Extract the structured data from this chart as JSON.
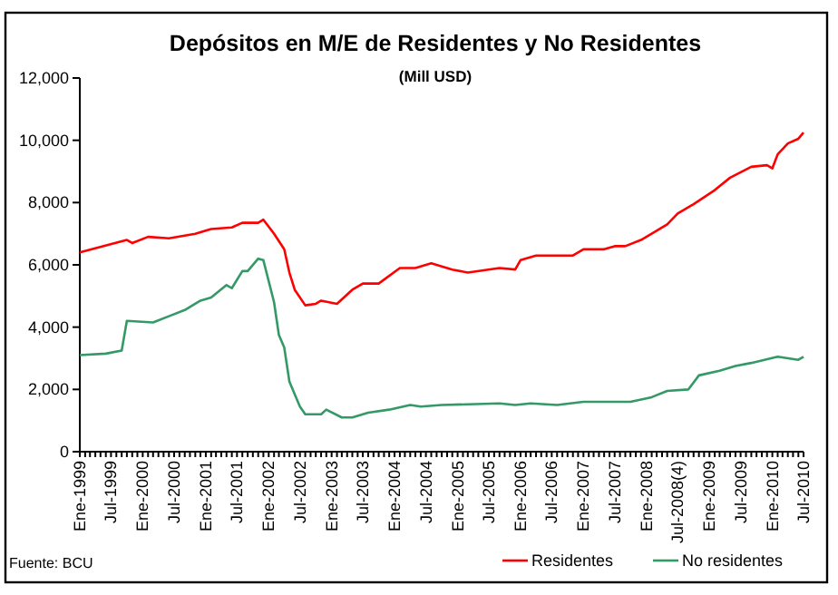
{
  "chart_data": {
    "type": "line",
    "title": "Depósitos en M/E de Residentes y No Residentes",
    "subtitle": "(Mill USD)",
    "annotations": [
      "Fuente: BCU"
    ],
    "legend": "bottom right",
    "grid": false,
    "marker": "none",
    "line_style": "solid",
    "xlim": [
      "1999-01",
      "2010-07"
    ],
    "xticks": [
      {
        "value": "1999-01",
        "label": "Ene-1999"
      },
      {
        "value": "1999-07",
        "label": "Jul-1999"
      },
      {
        "value": "2000-01",
        "label": "Ene-2000"
      },
      {
        "value": "2000-07",
        "label": "Jul-2000"
      },
      {
        "value": "2001-01",
        "label": "Ene-2001"
      },
      {
        "value": "2001-07",
        "label": "Jul-2001"
      },
      {
        "value": "2002-01",
        "label": "Ene-2002"
      },
      {
        "value": "2002-07",
        "label": "Jul-2002"
      },
      {
        "value": "2003-01",
        "label": "Ene-2003"
      },
      {
        "value": "2003-07",
        "label": "Jul-2003"
      },
      {
        "value": "2004-01",
        "label": "Ene-2004"
      },
      {
        "value": "2004-07",
        "label": "Jul-2004"
      },
      {
        "value": "2005-01",
        "label": "Ene-2005"
      },
      {
        "value": "2005-07",
        "label": "Jul-2005"
      },
      {
        "value": "2006-01",
        "label": "Ene-2006"
      },
      {
        "value": "2006-07",
        "label": "Jul-2006"
      },
      {
        "value": "2007-01",
        "label": "Ene-2007"
      },
      {
        "value": "2007-07",
        "label": "Jul-2007"
      },
      {
        "value": "2008-01",
        "label": "Ene-2008"
      },
      {
        "value": "2008-07",
        "label": "Jul-2008(4)"
      },
      {
        "value": "2009-01",
        "label": "Ene-2009"
      },
      {
        "value": "2009-07",
        "label": "Jul-2009"
      },
      {
        "value": "2010-01",
        "label": "Ene-2010"
      },
      {
        "value": "2010-07",
        "label": "Jul-2010"
      }
    ],
    "ylim": [
      0,
      12000
    ],
    "yticks": [
      {
        "value": 0,
        "label": "0"
      },
      {
        "value": 2000,
        "label": "2,000"
      },
      {
        "value": 4000,
        "label": "4,000"
      },
      {
        "value": 6000,
        "label": "6,000"
      },
      {
        "value": 8000,
        "label": "8,000"
      },
      {
        "value": 10000,
        "label": "10,000"
      },
      {
        "value": 12000,
        "label": "12,000"
      }
    ],
    "series": [
      {
        "name": "Residentes",
        "color": "#ff0000",
        "x": [
          "1999-01",
          "1999-10",
          "1999-11",
          "2000-02",
          "2000-06",
          "2000-11",
          "2001-02",
          "2001-06",
          "2001-08",
          "2001-11",
          "2001-12",
          "2002-02",
          "2002-04",
          "2002-05",
          "2002-06",
          "2002-08",
          "2002-10",
          "2002-11",
          "2003-02",
          "2003-05",
          "2003-07",
          "2003-10",
          "2004-02",
          "2004-05",
          "2004-08",
          "2004-12",
          "2005-03",
          "2005-09",
          "2005-12",
          "2006-01",
          "2006-04",
          "2006-11",
          "2007-01",
          "2007-05",
          "2007-07",
          "2007-09",
          "2007-12",
          "2008-02",
          "2008-05",
          "2008-07",
          "2008-10",
          "2009-02",
          "2009-05",
          "2009-09",
          "2009-12",
          "2010-01",
          "2010-02",
          "2010-04",
          "2010-06",
          "2010-07"
        ],
        "values": [
          6400,
          6800,
          6700,
          6900,
          6850,
          7000,
          7150,
          7200,
          7350,
          7350,
          7450,
          7000,
          6500,
          5750,
          5200,
          4700,
          4750,
          4850,
          4750,
          5200,
          5400,
          5400,
          5900,
          5900,
          6050,
          5850,
          5750,
          5900,
          5850,
          6150,
          6300,
          6300,
          6500,
          6500,
          6600,
          6600,
          6800,
          7000,
          7300,
          7650,
          7950,
          8400,
          8800,
          9150,
          9200,
          9100,
          9550,
          9900,
          10050,
          10250
        ]
      },
      {
        "name": "No residentes",
        "color": "#339966",
        "x": [
          "1999-01",
          "1999-06",
          "1999-09",
          "1999-10",
          "2000-03",
          "2000-06",
          "2000-09",
          "2000-12",
          "2001-02",
          "2001-05",
          "2001-06",
          "2001-08",
          "2001-09",
          "2001-11",
          "2001-12",
          "2002-02",
          "2002-03",
          "2002-04",
          "2002-05",
          "2002-07",
          "2002-08",
          "2002-11",
          "2002-12",
          "2003-03",
          "2003-05",
          "2003-08",
          "2003-12",
          "2004-04",
          "2004-06",
          "2004-10",
          "2005-09",
          "2005-12",
          "2006-03",
          "2006-08",
          "2007-01",
          "2007-10",
          "2008-02",
          "2008-05",
          "2008-09",
          "2008-11",
          "2009-03",
          "2009-06",
          "2009-09",
          "2010-02",
          "2010-06",
          "2010-07"
        ],
        "values": [
          3100,
          3150,
          3250,
          4200,
          4150,
          4350,
          4550,
          4850,
          4950,
          5350,
          5250,
          5800,
          5800,
          6200,
          6150,
          4800,
          3750,
          3350,
          2250,
          1450,
          1200,
          1200,
          1350,
          1100,
          1100,
          1250,
          1350,
          1500,
          1450,
          1500,
          1550,
          1500,
          1550,
          1500,
          1600,
          1600,
          1750,
          1950,
          2000,
          2450,
          2600,
          2750,
          2850,
          3050,
          2950,
          3050
        ]
      }
    ]
  }
}
